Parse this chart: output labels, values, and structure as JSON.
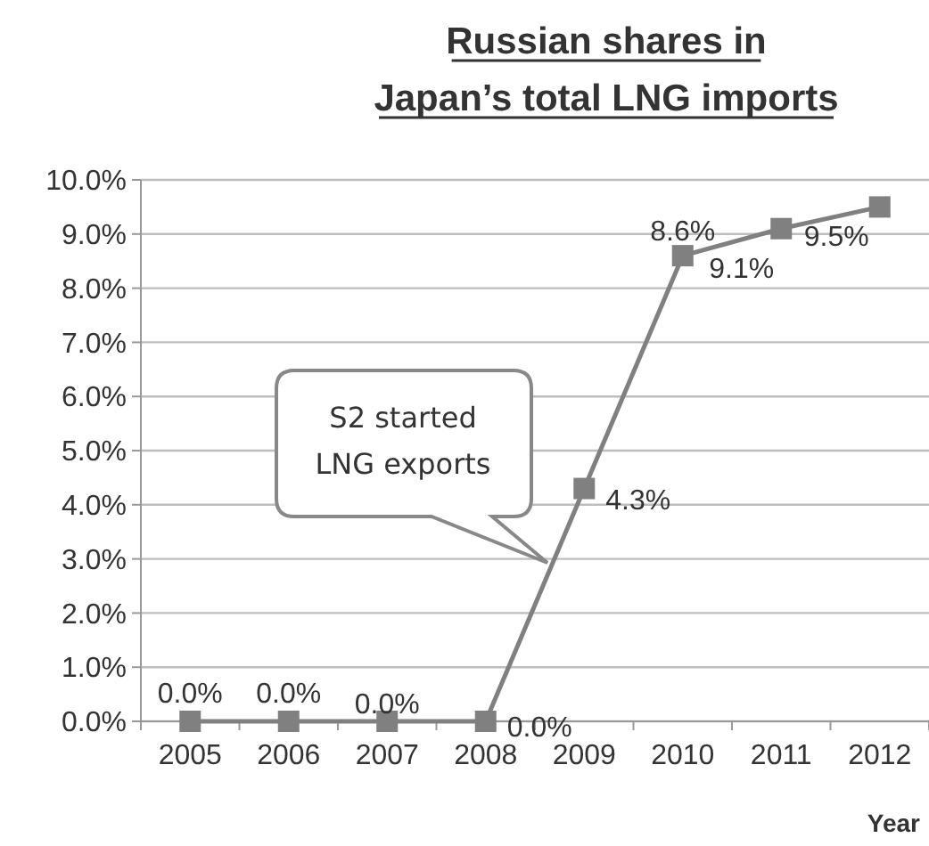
{
  "chart_data": {
    "type": "line",
    "title": "Russian shares in\nJapan’s total LNG imports",
    "xlabel": "Year",
    "categories": [
      "2005",
      "2006",
      "2007",
      "2008",
      "2009",
      "2010",
      "2011",
      "2012"
    ],
    "series": [
      {
        "color": "#808080",
        "values": [
          0,
          0,
          0,
          0,
          4.3,
          8.6,
          9.1,
          9.5
        ],
        "value_labels": [
          "0.0%",
          "0.0%",
          "0.0%",
          "0.0%",
          "4.3%",
          "8.6%",
          "9.1%",
          "9.5%"
        ]
      }
    ],
    "ylim": [
      0,
      10
    ],
    "yticks": [
      {
        "value": 0,
        "label": "0.0%"
      },
      {
        "value": 1,
        "label": "1.0%"
      },
      {
        "value": 2,
        "label": "2.0%"
      },
      {
        "value": 3,
        "label": "3.0%"
      },
      {
        "value": 4,
        "label": "4.0%"
      },
      {
        "value": 5,
        "label": "5.0%"
      },
      {
        "value": 6,
        "label": "6.0%"
      },
      {
        "value": 7,
        "label": "7.0%"
      },
      {
        "value": 8,
        "label": "8.0%"
      },
      {
        "value": 9,
        "label": "9.0%"
      },
      {
        "value": 10,
        "label": "10.0%"
      }
    ],
    "grid": "y",
    "marker": "square",
    "line_style": "solid",
    "annotations": [
      "S2 started\nLNG exports"
    ]
  }
}
